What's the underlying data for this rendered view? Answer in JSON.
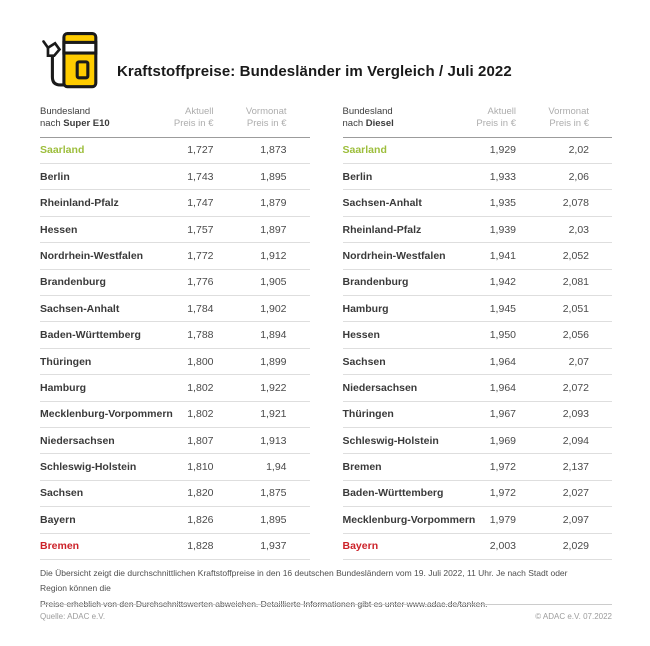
{
  "header": {
    "title": "Kraftstoffpreise: Bundesländer im Vergleich / Juli 2022",
    "icon": "fuel-pump-icon"
  },
  "colors": {
    "brand_yellow": "#FFCC00",
    "cheapest_green": "#9DBE3C",
    "most_expensive_red": "#CC2229",
    "text_dark": "#3C3C3C",
    "header_gray": "#ADADAD"
  },
  "tables": [
    {
      "id": "super-e10",
      "header": {
        "col1_line1": "Bundesland",
        "col1_prefix": "nach ",
        "col1_bold": "Super E10",
        "col2_line1": "Aktuell",
        "col2_line2": "Preis in €",
        "col3_line1": "Vormonat",
        "col3_line2": "Preis in €"
      },
      "rows": [
        {
          "name": "Saarland",
          "aktuell": "1,727",
          "vormonat": "1,873",
          "highlight": "green"
        },
        {
          "name": "Berlin",
          "aktuell": "1,743",
          "vormonat": "1,895",
          "highlight": ""
        },
        {
          "name": "Rheinland-Pfalz",
          "aktuell": "1,747",
          "vormonat": "1,879",
          "highlight": ""
        },
        {
          "name": "Hessen",
          "aktuell": "1,757",
          "vormonat": "1,897",
          "highlight": ""
        },
        {
          "name": "Nordrhein-Westfalen",
          "aktuell": "1,772",
          "vormonat": "1,912",
          "highlight": ""
        },
        {
          "name": "Brandenburg",
          "aktuell": "1,776",
          "vormonat": "1,905",
          "highlight": ""
        },
        {
          "name": "Sachsen-Anhalt",
          "aktuell": "1,784",
          "vormonat": "1,902",
          "highlight": ""
        },
        {
          "name": "Baden-Württemberg",
          "aktuell": "1,788",
          "vormonat": "1,894",
          "highlight": ""
        },
        {
          "name": "Thüringen",
          "aktuell": "1,800",
          "vormonat": "1,899",
          "highlight": ""
        },
        {
          "name": "Hamburg",
          "aktuell": "1,802",
          "vormonat": "1,922",
          "highlight": ""
        },
        {
          "name": "Mecklenburg-Vorpommern",
          "aktuell": "1,802",
          "vormonat": "1,921",
          "highlight": ""
        },
        {
          "name": "Niedersachsen",
          "aktuell": "1,807",
          "vormonat": "1,913",
          "highlight": ""
        },
        {
          "name": "Schleswig-Holstein",
          "aktuell": "1,810",
          "vormonat": "1,94",
          "highlight": ""
        },
        {
          "name": "Sachsen",
          "aktuell": "1,820",
          "vormonat": "1,875",
          "highlight": ""
        },
        {
          "name": "Bayern",
          "aktuell": "1,826",
          "vormonat": "1,895",
          "highlight": ""
        },
        {
          "name": "Bremen",
          "aktuell": "1,828",
          "vormonat": "1,937",
          "highlight": "red"
        }
      ]
    },
    {
      "id": "diesel",
      "header": {
        "col1_line1": "Bundesland",
        "col1_prefix": "nach ",
        "col1_bold": "Diesel",
        "col2_line1": "Aktuell",
        "col2_line2": "Preis in €",
        "col3_line1": "Vormonat",
        "col3_line2": "Preis in €"
      },
      "rows": [
        {
          "name": "Saarland",
          "aktuell": "1,929",
          "vormonat": "2,02",
          "highlight": "green"
        },
        {
          "name": "Berlin",
          "aktuell": "1,933",
          "vormonat": "2,06",
          "highlight": ""
        },
        {
          "name": "Sachsen-Anhalt",
          "aktuell": "1,935",
          "vormonat": "2,078",
          "highlight": ""
        },
        {
          "name": "Rheinland-Pfalz",
          "aktuell": "1,939",
          "vormonat": "2,03",
          "highlight": ""
        },
        {
          "name": "Nordrhein-Westfalen",
          "aktuell": "1,941",
          "vormonat": "2,052",
          "highlight": ""
        },
        {
          "name": "Brandenburg",
          "aktuell": "1,942",
          "vormonat": "2,081",
          "highlight": ""
        },
        {
          "name": "Hamburg",
          "aktuell": "1,945",
          "vormonat": "2,051",
          "highlight": ""
        },
        {
          "name": "Hessen",
          "aktuell": "1,950",
          "vormonat": "2,056",
          "highlight": ""
        },
        {
          "name": "Sachsen",
          "aktuell": "1,964",
          "vormonat": "2,07",
          "highlight": ""
        },
        {
          "name": "Niedersachsen",
          "aktuell": "1,964",
          "vormonat": "2,072",
          "highlight": ""
        },
        {
          "name": "Thüringen",
          "aktuell": "1,967",
          "vormonat": "2,093",
          "highlight": ""
        },
        {
          "name": "Schleswig-Holstein",
          "aktuell": "1,969",
          "vormonat": "2,094",
          "highlight": ""
        },
        {
          "name": "Bremen",
          "aktuell": "1,972",
          "vormonat": "2,137",
          "highlight": ""
        },
        {
          "name": "Baden-Württemberg",
          "aktuell": "1,972",
          "vormonat": "2,027",
          "highlight": ""
        },
        {
          "name": "Mecklenburg-Vorpommern",
          "aktuell": "1,979",
          "vormonat": "2,097",
          "highlight": ""
        },
        {
          "name": "Bayern",
          "aktuell": "2,003",
          "vormonat": "2,029",
          "highlight": "red"
        }
      ]
    }
  ],
  "footnote": {
    "lines": [
      "Die Übersicht zeigt die durchschnittlichen Kraftstoffpreise in den 16 deutschen Bundesländern vom 19. Juli 2022, 11 Uhr. Je nach Stadt oder Region können die",
      "Preise erheblich von den Durchschnittswerten abweichen. Detaillierte Informationen gibt es unter www.adac.de/tanken."
    ]
  },
  "footer": {
    "source": "Quelle: ADAC e.V.",
    "copyright": "© ADAC e.V. 07.2022"
  },
  "chart_data": [
    {
      "type": "table",
      "title": "Kraftstoffpreise Bundesländer im Vergleich Juli 2022 — Super E10",
      "columns": [
        "Bundesland nach Super E10",
        "Aktuell Preis in €",
        "Vormonat Preis in €"
      ],
      "rows": [
        [
          "Saarland",
          1.727,
          1.873
        ],
        [
          "Berlin",
          1.743,
          1.895
        ],
        [
          "Rheinland-Pfalz",
          1.747,
          1.879
        ],
        [
          "Hessen",
          1.757,
          1.897
        ],
        [
          "Nordrhein-Westfalen",
          1.772,
          1.912
        ],
        [
          "Brandenburg",
          1.776,
          1.905
        ],
        [
          "Sachsen-Anhalt",
          1.784,
          1.902
        ],
        [
          "Baden-Württemberg",
          1.788,
          1.894
        ],
        [
          "Thüringen",
          1.8,
          1.899
        ],
        [
          "Hamburg",
          1.802,
          1.922
        ],
        [
          "Mecklenburg-Vorpommern",
          1.802,
          1.921
        ],
        [
          "Niedersachsen",
          1.807,
          1.913
        ],
        [
          "Schleswig-Holstein",
          1.81,
          1.94
        ],
        [
          "Sachsen",
          1.82,
          1.875
        ],
        [
          "Bayern",
          1.826,
          1.895
        ],
        [
          "Bremen",
          1.828,
          1.937
        ]
      ]
    },
    {
      "type": "table",
      "title": "Kraftstoffpreise Bundesländer im Vergleich Juli 2022 — Diesel",
      "columns": [
        "Bundesland nach Diesel",
        "Aktuell Preis in €",
        "Vormonat Preis in €"
      ],
      "rows": [
        [
          "Saarland",
          1.929,
          2.02
        ],
        [
          "Berlin",
          1.933,
          2.06
        ],
        [
          "Sachsen-Anhalt",
          1.935,
          2.078
        ],
        [
          "Rheinland-Pfalz",
          1.939,
          2.03
        ],
        [
          "Nordrhein-Westfalen",
          1.941,
          2.052
        ],
        [
          "Brandenburg",
          1.942,
          2.081
        ],
        [
          "Hamburg",
          1.945,
          2.051
        ],
        [
          "Hessen",
          1.95,
          2.056
        ],
        [
          "Sachsen",
          1.964,
          2.07
        ],
        [
          "Niedersachsen",
          1.964,
          2.072
        ],
        [
          "Thüringen",
          1.967,
          2.093
        ],
        [
          "Schleswig-Holstein",
          1.969,
          2.094
        ],
        [
          "Bremen",
          1.972,
          2.137
        ],
        [
          "Baden-Württemberg",
          1.972,
          2.027
        ],
        [
          "Mecklenburg-Vorpommern",
          1.979,
          2.097
        ],
        [
          "Bayern",
          2.003,
          2.029
        ]
      ]
    }
  ]
}
